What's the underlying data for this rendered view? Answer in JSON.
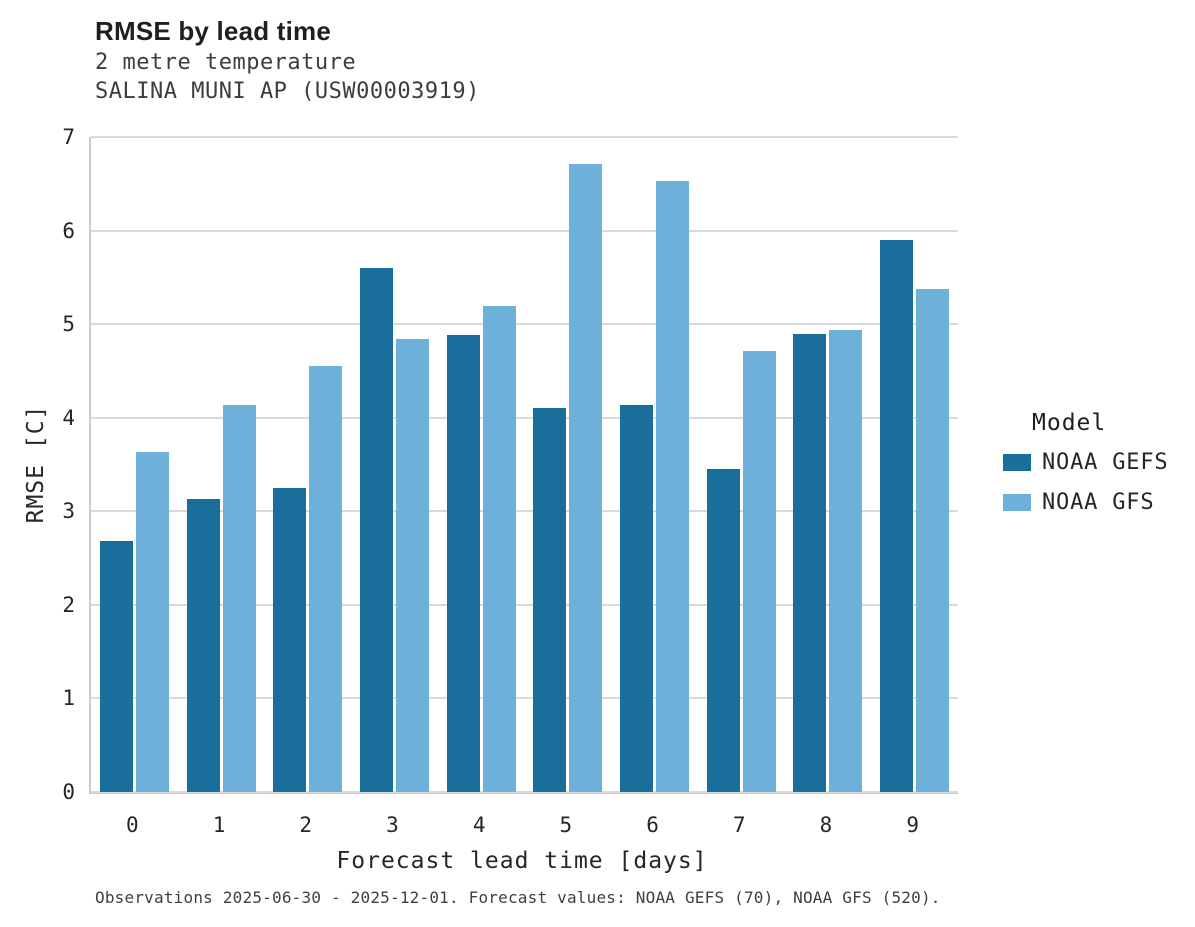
{
  "header": {
    "title": "RMSE by lead time",
    "subtitle1": "2 metre temperature",
    "subtitle2": "SALINA MUNI AP (USW00003919)"
  },
  "chart_data": {
    "type": "bar",
    "grouped": true,
    "title": "RMSE by lead time",
    "subtitle": [
      "2 metre temperature",
      "SALINA MUNI AP (USW00003919)"
    ],
    "categories": [
      "0",
      "1",
      "2",
      "3",
      "4",
      "5",
      "6",
      "7",
      "8",
      "9"
    ],
    "series": [
      {
        "name": "NOAA GEFS",
        "color": "#1A6E9C",
        "values": [
          2.68,
          3.13,
          3.25,
          5.6,
          4.88,
          4.1,
          4.14,
          3.45,
          4.89,
          5.9
        ]
      },
      {
        "name": "NOAA GFS",
        "color": "#6DB1DA",
        "values": [
          3.63,
          4.14,
          4.55,
          4.84,
          5.19,
          6.71,
          6.53,
          4.71,
          4.94,
          5.38
        ]
      }
    ],
    "xlabel": "Forecast lead time [days]",
    "ylabel": "RMSE [C]",
    "ylim": [
      0,
      7
    ],
    "y_ticks": [
      0,
      1,
      2,
      3,
      4,
      5,
      6,
      7
    ],
    "grid": true,
    "legend": {
      "title": "Model",
      "position": "right"
    },
    "colors": {
      "grid": "#d9d9d9",
      "axis": "#cbcbcb"
    }
  },
  "footer": {
    "caption": "Observations 2025-06-30 - 2025-12-01. Forecast values: NOAA GEFS (70), NOAA GFS (520)."
  }
}
